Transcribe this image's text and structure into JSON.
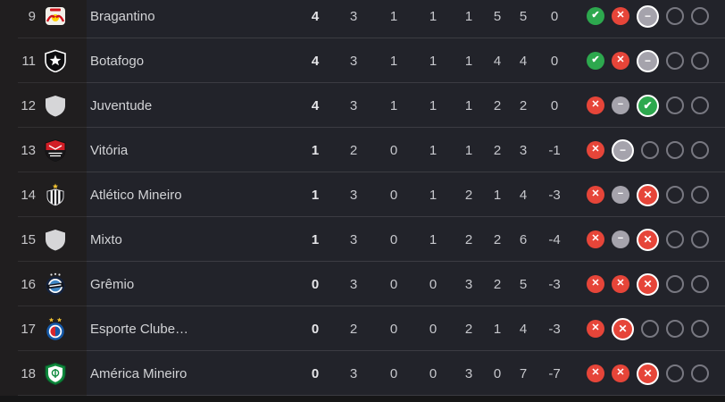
{
  "colors": {
    "win": "#2da84e",
    "loss": "#e64539",
    "draw": "#a5a3ac",
    "row_bg": "#22232a",
    "rail_bg": "#201e1f",
    "page_bg": "#161617"
  },
  "form_icons": {
    "win": {
      "name": "check-icon",
      "glyph": "✔"
    },
    "loss": {
      "name": "x-icon",
      "glyph": "✕"
    },
    "draw": {
      "name": "minus-icon",
      "glyph": "−"
    }
  },
  "table": {
    "columns": [
      "points",
      "played",
      "wins",
      "draws",
      "losses",
      "goals_for",
      "goals_against",
      "goal_diff"
    ],
    "rows": [
      {
        "position": "9",
        "team": "Bragantino",
        "crest": "bragantino-crest",
        "stats": [
          "4",
          "3",
          "1",
          "1",
          "1",
          "5",
          "5",
          "0"
        ],
        "form": [
          "win",
          "loss",
          "draw-last",
          "empty",
          "empty"
        ]
      },
      {
        "position": "11",
        "team": "Botafogo",
        "crest": "botafogo-crest",
        "stats": [
          "4",
          "3",
          "1",
          "1",
          "1",
          "4",
          "4",
          "0"
        ],
        "form": [
          "win",
          "loss",
          "draw-last",
          "empty",
          "empty"
        ]
      },
      {
        "position": "12",
        "team": "Juventude",
        "crest": "generic-crest",
        "stats": [
          "4",
          "3",
          "1",
          "1",
          "1",
          "2",
          "2",
          "0"
        ],
        "form": [
          "loss",
          "draw",
          "win-last",
          "empty",
          "empty"
        ]
      },
      {
        "position": "13",
        "team": "Vitória",
        "crest": "vitoria-crest",
        "stats": [
          "1",
          "2",
          "0",
          "1",
          "1",
          "2",
          "3",
          "-1"
        ],
        "form": [
          "loss",
          "draw-last",
          "empty",
          "empty",
          "empty"
        ]
      },
      {
        "position": "14",
        "team": "Atlético Mineiro",
        "crest": "atletico-mineiro-crest",
        "stats": [
          "1",
          "3",
          "0",
          "1",
          "2",
          "1",
          "4",
          "-3"
        ],
        "form": [
          "loss",
          "draw",
          "loss-last",
          "empty",
          "empty"
        ]
      },
      {
        "position": "15",
        "team": "Mixto",
        "crest": "generic-crest",
        "stats": [
          "1",
          "3",
          "0",
          "1",
          "2",
          "2",
          "6",
          "-4"
        ],
        "form": [
          "loss",
          "draw",
          "loss-last",
          "empty",
          "empty"
        ]
      },
      {
        "position": "16",
        "team": "Grêmio",
        "crest": "gremio-crest",
        "stats": [
          "0",
          "3",
          "0",
          "0",
          "3",
          "2",
          "5",
          "-3"
        ],
        "form": [
          "loss",
          "loss",
          "loss-last",
          "empty",
          "empty"
        ]
      },
      {
        "position": "17",
        "team": "Esporte Clube…",
        "crest": "bahia-crest",
        "stats": [
          "0",
          "2",
          "0",
          "0",
          "2",
          "1",
          "4",
          "-3"
        ],
        "form": [
          "loss",
          "loss-last",
          "empty",
          "empty",
          "empty"
        ]
      },
      {
        "position": "18",
        "team": "América Mineiro",
        "crest": "america-mineiro-crest",
        "stats": [
          "0",
          "3",
          "0",
          "0",
          "3",
          "0",
          "7",
          "-7"
        ],
        "form": [
          "loss",
          "loss",
          "loss-last",
          "empty",
          "empty"
        ]
      }
    ]
  }
}
